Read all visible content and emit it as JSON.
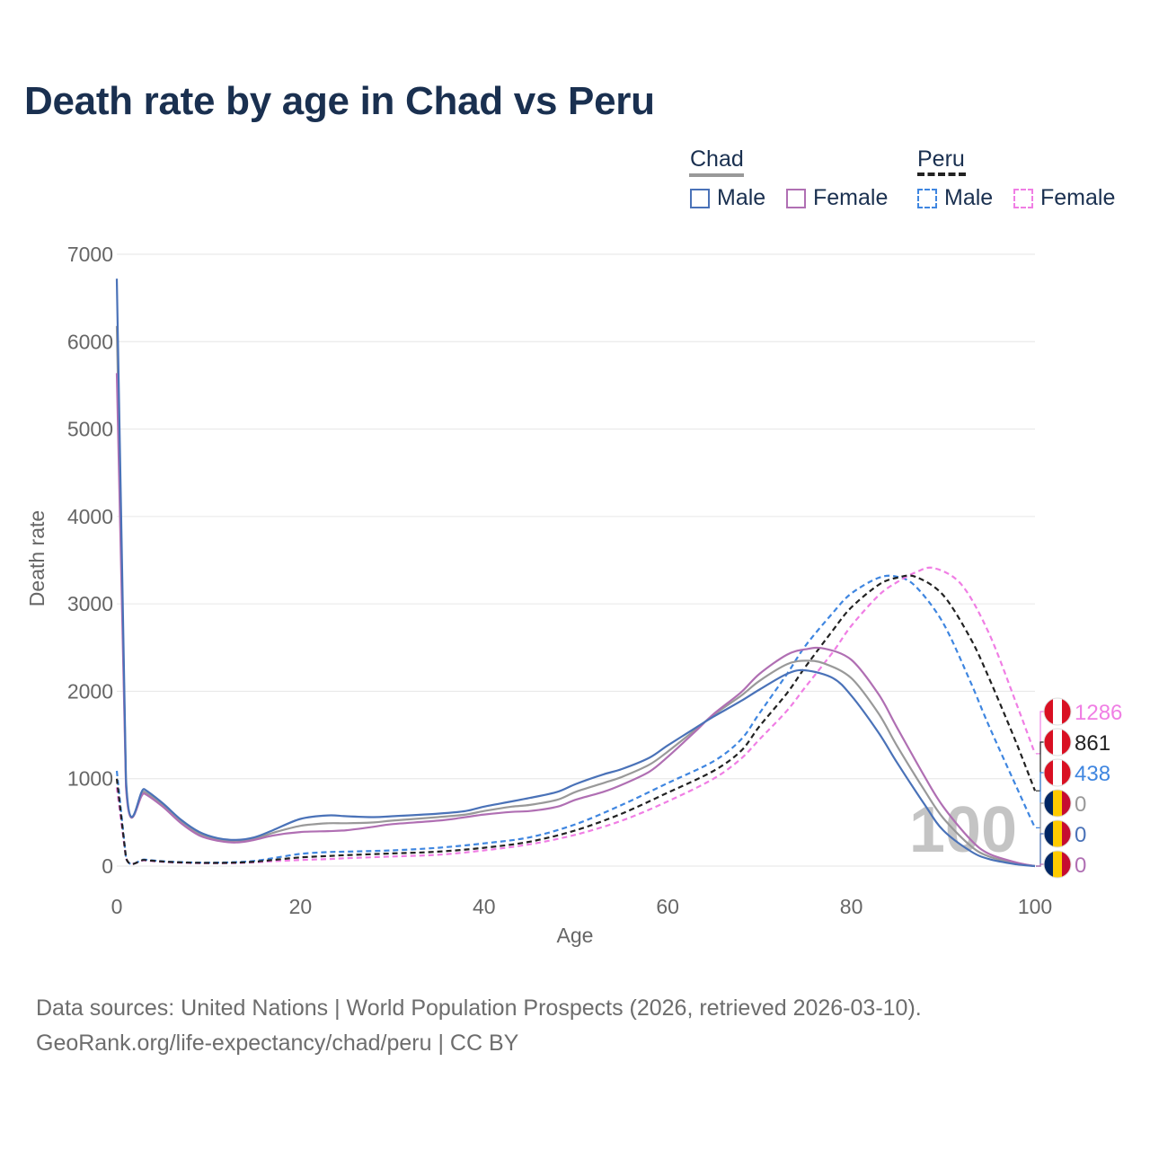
{
  "title": "Death rate by age in Chad vs Peru",
  "legend": {
    "groups": [
      {
        "name": "Chad",
        "items": [
          {
            "label": "Male"
          },
          {
            "label": "Female"
          }
        ]
      },
      {
        "name": "Peru",
        "items": [
          {
            "label": "Male"
          },
          {
            "label": "Female"
          }
        ]
      }
    ]
  },
  "colors": {
    "chad_male": "#4a72b8",
    "chad_female": "#b06fb3",
    "chad_total": "#999999",
    "peru_male": "#3f86e0",
    "peru_female": "#f07ee4",
    "peru_total": "#222222",
    "grid": "#e6e6e6",
    "axis_text": "#666666"
  },
  "chart_data": {
    "type": "line",
    "title": "Death rate by age in Chad vs Peru",
    "xlabel": "Age",
    "ylabel": "Death rate",
    "xlim": [
      0,
      100
    ],
    "ylim": [
      0,
      7000
    ],
    "xticks": [
      0,
      20,
      40,
      60,
      80,
      100
    ],
    "yticks": [
      0,
      1000,
      2000,
      3000,
      4000,
      5000,
      6000,
      7000
    ],
    "grid": true,
    "legend_position": "top-right",
    "watermark_year": "100",
    "series": [
      {
        "name": "Chad Male",
        "country": "Chad",
        "sex": "Male",
        "style": "solid",
        "color_key": "chad_male",
        "x": [
          0,
          1,
          3,
          5,
          7,
          9,
          11,
          13,
          15,
          17,
          20,
          23,
          25,
          28,
          30,
          35,
          38,
          40,
          43,
          45,
          48,
          50,
          53,
          55,
          58,
          60,
          63,
          65,
          68,
          70,
          73,
          75,
          78,
          80,
          83,
          85,
          88,
          90,
          93,
          95,
          98,
          100
        ],
        "y": [
          6720,
          1000,
          880,
          720,
          530,
          390,
          320,
          300,
          330,
          410,
          540,
          580,
          570,
          560,
          570,
          600,
          630,
          680,
          740,
          780,
          850,
          940,
          1050,
          1110,
          1240,
          1380,
          1580,
          1710,
          1890,
          2020,
          2200,
          2240,
          2150,
          1950,
          1520,
          1180,
          700,
          410,
          170,
          80,
          20,
          0
        ]
      },
      {
        "name": "Chad Female",
        "country": "Chad",
        "sex": "Female",
        "style": "solid",
        "color_key": "chad_female",
        "x": [
          0,
          1,
          3,
          5,
          7,
          9,
          11,
          13,
          15,
          17,
          20,
          23,
          25,
          28,
          30,
          35,
          38,
          40,
          43,
          45,
          48,
          50,
          53,
          55,
          58,
          60,
          63,
          65,
          68,
          70,
          73,
          75,
          77,
          80,
          83,
          85,
          88,
          90,
          93,
          95,
          98,
          100
        ],
        "y": [
          5640,
          910,
          830,
          680,
          490,
          350,
          290,
          270,
          300,
          350,
          390,
          400,
          410,
          450,
          480,
          520,
          560,
          590,
          620,
          630,
          680,
          760,
          850,
          930,
          1080,
          1250,
          1540,
          1740,
          1990,
          2200,
          2420,
          2480,
          2490,
          2360,
          1960,
          1580,
          1020,
          680,
          300,
          140,
          40,
          0
        ]
      },
      {
        "name": "Chad Total",
        "country": "Chad",
        "sex": "Total",
        "style": "solid",
        "color_key": "chad_total",
        "x": [
          0,
          1,
          3,
          5,
          7,
          9,
          11,
          13,
          15,
          17,
          20,
          23,
          25,
          28,
          30,
          35,
          38,
          40,
          43,
          45,
          48,
          50,
          53,
          55,
          58,
          60,
          63,
          65,
          68,
          70,
          73,
          75,
          77,
          80,
          83,
          85,
          88,
          90,
          93,
          95,
          98,
          100
        ],
        "y": [
          6180,
          950,
          850,
          700,
          510,
          370,
          300,
          290,
          310,
          380,
          460,
          490,
          490,
          500,
          520,
          560,
          590,
          630,
          680,
          700,
          760,
          850,
          950,
          1020,
          1160,
          1310,
          1560,
          1730,
          1950,
          2120,
          2310,
          2350,
          2320,
          2150,
          1740,
          1370,
          860,
          550,
          230,
          110,
          30,
          0
        ]
      },
      {
        "name": "Peru Male",
        "country": "Peru",
        "sex": "Male",
        "style": "dashed",
        "color_key": "peru_male",
        "x": [
          0,
          1,
          3,
          5,
          7,
          9,
          11,
          13,
          15,
          17,
          20,
          23,
          25,
          30,
          35,
          40,
          45,
          50,
          55,
          60,
          65,
          68,
          70,
          73,
          75,
          78,
          80,
          83,
          85,
          87,
          90,
          93,
          95,
          98,
          100
        ],
        "y": [
          1090,
          100,
          75,
          55,
          45,
          40,
          40,
          45,
          60,
          90,
          140,
          160,
          165,
          180,
          210,
          260,
          330,
          480,
          700,
          950,
          1200,
          1450,
          1750,
          2200,
          2520,
          2900,
          3120,
          3300,
          3310,
          3200,
          2780,
          2100,
          1600,
          900,
          438
        ]
      },
      {
        "name": "Peru Female",
        "country": "Peru",
        "sex": "Female",
        "style": "dashed",
        "color_key": "peru_female",
        "x": [
          0,
          1,
          3,
          5,
          7,
          9,
          11,
          13,
          15,
          17,
          20,
          23,
          25,
          30,
          35,
          40,
          45,
          50,
          55,
          60,
          65,
          68,
          70,
          73,
          75,
          78,
          80,
          83,
          85,
          87,
          89,
          92,
          95,
          98,
          100
        ],
        "y": [
          900,
          90,
          65,
          48,
          38,
          33,
          33,
          35,
          42,
          55,
          70,
          80,
          90,
          110,
          130,
          180,
          250,
          360,
          520,
          740,
          1000,
          1230,
          1450,
          1780,
          2050,
          2450,
          2750,
          3100,
          3250,
          3360,
          3410,
          3220,
          2660,
          1850,
          1286
        ]
      },
      {
        "name": "Peru Total",
        "country": "Peru",
        "sex": "Total",
        "style": "dashed",
        "color_key": "peru_total",
        "x": [
          0,
          1,
          3,
          5,
          7,
          9,
          11,
          13,
          15,
          17,
          20,
          23,
          25,
          30,
          35,
          40,
          45,
          50,
          55,
          60,
          65,
          68,
          70,
          73,
          75,
          78,
          80,
          83,
          85,
          87,
          90,
          93,
          95,
          98,
          100
        ],
        "y": [
          1000,
          95,
          70,
          52,
          42,
          37,
          36,
          40,
          50,
          70,
          100,
          115,
          125,
          145,
          165,
          210,
          280,
          410,
          600,
          840,
          1090,
          1320,
          1600,
          1980,
          2280,
          2700,
          2960,
          3220,
          3300,
          3310,
          3100,
          2600,
          2150,
          1400,
          861
        ]
      }
    ],
    "end_labels": [
      {
        "value": "1286",
        "country": "Peru",
        "color_key": "peru_female",
        "flag": "peru"
      },
      {
        "value": "861",
        "country": "Peru",
        "color_key": "peru_total",
        "flag": "peru"
      },
      {
        "value": "438",
        "country": "Peru",
        "color_key": "peru_male",
        "flag": "peru"
      },
      {
        "value": "0",
        "country": "Chad",
        "color_key": "chad_total",
        "flag": "chad"
      },
      {
        "value": "0",
        "country": "Chad",
        "color_key": "chad_male",
        "flag": "chad"
      },
      {
        "value": "0",
        "country": "Chad",
        "color_key": "chad_female",
        "flag": "chad"
      }
    ]
  },
  "footer": {
    "line1": "Data sources: United Nations | World Population Prospects (2026, retrieved 2026-03-10).",
    "line2": "GeoRank.org/life-expectancy/chad/peru | CC BY"
  }
}
